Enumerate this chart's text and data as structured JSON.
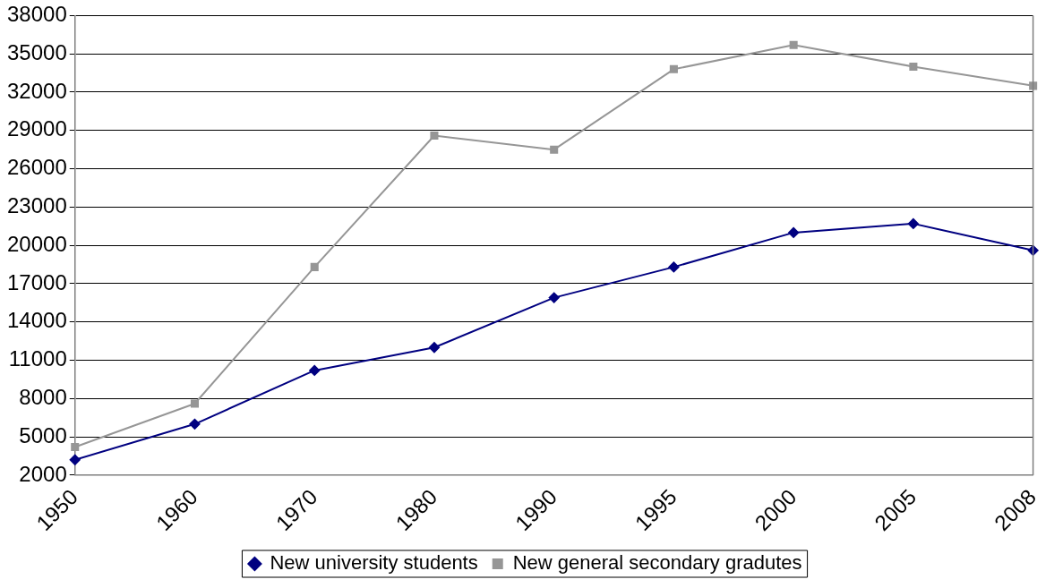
{
  "chart_data": {
    "type": "line",
    "categories": [
      "1950",
      "1960",
      "1970",
      "1980",
      "1990",
      "1995",
      "2000",
      "2005",
      "2008"
    ],
    "series": [
      {
        "name": "New university students",
        "color": "#000080",
        "marker": "diamond",
        "values": [
          3200,
          6000,
          10200,
          12000,
          15900,
          18300,
          21000,
          21700,
          19600
        ]
      },
      {
        "name": "New general secondary gradutes",
        "color": "#969696",
        "marker": "square",
        "values": [
          4200,
          7600,
          18300,
          28600,
          27500,
          33800,
          35700,
          34000,
          32500
        ]
      }
    ],
    "ylim": [
      2000,
      38000
    ],
    "yticks": [
      2000,
      5000,
      8000,
      11000,
      14000,
      17000,
      20000,
      23000,
      26000,
      29000,
      32000,
      35000,
      38000
    ],
    "grid": "y",
    "legend": "bottom",
    "line_style": "solid"
  }
}
